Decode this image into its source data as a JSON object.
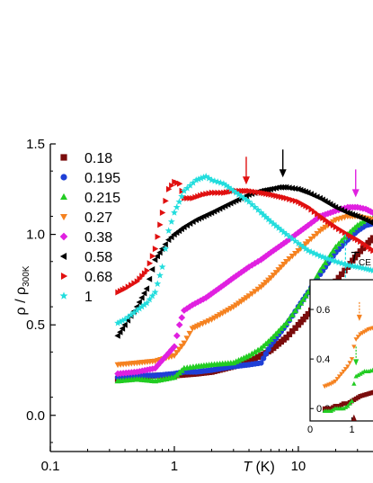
{
  "chart_data": {
    "type": "scatter",
    "xscale": "log",
    "xlim": [
      0.1,
      40
    ],
    "ylim": [
      -0.2,
      1.5
    ],
    "xticks": [
      {
        "v": 0.1,
        "label": "0.1"
      },
      {
        "v": 1,
        "label": "1"
      },
      {
        "v": 10,
        "label": "10"
      }
    ],
    "yticks": [
      {
        "v": 0.0,
        "label": "0.0"
      },
      {
        "v": 0.5,
        "label": "0.5"
      },
      {
        "v": 1.0,
        "label": "1.0"
      },
      {
        "v": 1.5,
        "label": "1.5"
      }
    ],
    "xlabel": {
      "main": "T",
      "unit": " (K)"
    },
    "ylabel": {
      "main": "ρ / ρ",
      "sub": "300K"
    },
    "annotation": {
      "main": "T",
      "sub": "CE",
      "x": 26,
      "y": 0.85
    },
    "legend_position": "top-left",
    "series": [
      {
        "name": "0.18",
        "color": "#7a0c0c",
        "marker": "square",
        "x": [
          0.35,
          0.5,
          0.7,
          1.0,
          1.5,
          2,
          3,
          4,
          5,
          6,
          8,
          10,
          12,
          15,
          20,
          25,
          30,
          35,
          40
        ],
        "y": [
          0.2,
          0.21,
          0.22,
          0.22,
          0.23,
          0.24,
          0.27,
          0.3,
          0.33,
          0.36,
          0.43,
          0.5,
          0.56,
          0.64,
          0.74,
          0.82,
          0.89,
          0.94,
          0.98
        ]
      },
      {
        "name": "0.195",
        "color": "#1f3fd6",
        "marker": "circle",
        "x": [
          0.35,
          0.5,
          0.7,
          1.0,
          1.2,
          1.5,
          2,
          3,
          4,
          5,
          6,
          8,
          10,
          12,
          15,
          20,
          25,
          30,
          35,
          40
        ],
        "y": [
          0.21,
          0.22,
          0.22,
          0.23,
          0.24,
          0.24,
          0.25,
          0.27,
          0.28,
          0.29,
          0.39,
          0.5,
          0.6,
          0.68,
          0.78,
          0.9,
          0.97,
          1.02,
          1.05,
          1.06
        ]
      },
      {
        "name": "0.215",
        "color": "#22cc22",
        "marker": "triangle-up",
        "x": [
          0.35,
          0.5,
          0.7,
          1.0,
          1.2,
          1.5,
          2,
          3,
          4,
          5,
          6,
          8,
          10,
          12,
          15,
          20,
          25,
          30,
          35,
          40
        ],
        "y": [
          0.19,
          0.2,
          0.19,
          0.21,
          0.26,
          0.27,
          0.28,
          0.29,
          0.33,
          0.37,
          0.42,
          0.51,
          0.6,
          0.68,
          0.8,
          0.93,
          1.0,
          1.05,
          1.08,
          1.09
        ]
      },
      {
        "name": "0.27",
        "color": "#f58220",
        "marker": "triangle-down",
        "x": [
          0.35,
          0.5,
          0.7,
          1.0,
          1.2,
          1.4,
          1.6,
          2,
          3,
          4,
          5,
          6,
          8,
          10,
          12,
          15,
          20,
          25,
          30,
          35,
          40
        ],
        "y": [
          0.28,
          0.29,
          0.3,
          0.33,
          0.4,
          0.48,
          0.5,
          0.53,
          0.6,
          0.66,
          0.71,
          0.76,
          0.85,
          0.91,
          0.96,
          1.02,
          1.08,
          1.1,
          1.1,
          1.09,
          1.08
        ]
      },
      {
        "name": "0.38",
        "color": "#e020e0",
        "marker": "diamond",
        "x": [
          0.35,
          0.5,
          0.7,
          1.0,
          1.1,
          1.2,
          1.4,
          1.8,
          2.5,
          3,
          4,
          5,
          6,
          8,
          10,
          12,
          15,
          20,
          25,
          30,
          35,
          40
        ],
        "y": [
          0.23,
          0.24,
          0.26,
          0.38,
          0.5,
          0.58,
          0.61,
          0.65,
          0.72,
          0.76,
          0.82,
          0.86,
          0.9,
          0.96,
          1.01,
          1.05,
          1.1,
          1.13,
          1.15,
          1.15,
          1.14,
          1.12
        ]
      },
      {
        "name": "0.58",
        "color": "#000000",
        "marker": "triangle-left",
        "x": [
          0.35,
          0.4,
          0.5,
          0.6,
          0.7,
          0.8,
          0.9,
          1.0,
          1.2,
          1.5,
          2,
          3,
          4,
          5,
          6,
          7,
          8,
          10,
          12,
          15,
          20,
          25,
          30,
          35,
          40
        ],
        "y": [
          0.44,
          0.5,
          0.6,
          0.7,
          0.86,
          0.92,
          0.97,
          1.0,
          1.04,
          1.08,
          1.12,
          1.18,
          1.22,
          1.24,
          1.25,
          1.26,
          1.26,
          1.25,
          1.23,
          1.2,
          1.15,
          1.12,
          1.1,
          1.08,
          1.06
        ]
      },
      {
        "name": "0.68",
        "color": "#e01010",
        "marker": "triangle-right",
        "x": [
          0.35,
          0.4,
          0.5,
          0.6,
          0.7,
          0.8,
          0.9,
          1.0,
          1.1,
          1.2,
          1.4,
          1.7,
          2,
          2.5,
          3,
          3.5,
          4,
          5,
          6,
          8,
          10,
          12,
          15,
          20,
          25,
          30,
          35,
          40
        ],
        "y": [
          0.68,
          0.7,
          0.74,
          0.8,
          0.92,
          1.12,
          1.25,
          1.29,
          1.28,
          1.2,
          1.2,
          1.22,
          1.23,
          1.23,
          1.24,
          1.24,
          1.24,
          1.23,
          1.22,
          1.2,
          1.18,
          1.15,
          1.1,
          1.04,
          1.0,
          0.97,
          0.94,
          0.91
        ]
      },
      {
        "name": "1",
        "color": "#22dddd",
        "marker": "star",
        "x": [
          0.35,
          0.4,
          0.5,
          0.6,
          0.7,
          0.8,
          0.9,
          1.0,
          1.2,
          1.5,
          1.8,
          2,
          2.5,
          3,
          4,
          5,
          6,
          8,
          10,
          12,
          15,
          20,
          25,
          30,
          35,
          40
        ],
        "y": [
          0.51,
          0.53,
          0.58,
          0.62,
          0.68,
          0.82,
          1.02,
          1.12,
          1.24,
          1.3,
          1.32,
          1.3,
          1.28,
          1.24,
          1.18,
          1.12,
          1.07,
          1.0,
          0.95,
          0.91,
          0.88,
          0.85,
          0.83,
          0.82,
          0.81,
          0.8
        ]
      }
    ],
    "arrows": [
      {
        "x": 3.8,
        "y": 1.26,
        "color": "#e01010"
      },
      {
        "x": 7.5,
        "y": 1.3,
        "color": "#000000"
      },
      {
        "x": 29,
        "y": 1.19,
        "color": "#e020e0"
      }
    ],
    "tce_line": {
      "x": 24,
      "y1": 0.5,
      "y2": 1.0,
      "color": "#22dddd"
    },
    "inset": {
      "xlim": [
        0,
        1.6
      ],
      "ylim": [
        0.15,
        0.72
      ],
      "xticks": [
        {
          "v": 0,
          "label": "0"
        },
        {
          "v": 1,
          "label": "1"
        }
      ],
      "yticks": [
        {
          "v": 0.2,
          "label": "0.2"
        },
        {
          "v": 0.4,
          "label": "0.4"
        },
        {
          "v": 0.6,
          "label": "0.6"
        }
      ],
      "series": [
        {
          "ref": "0.18",
          "color": "#7a0c0c",
          "marker": "square",
          "x": [
            0.35,
            0.5,
            0.6,
            0.7,
            0.8,
            0.9,
            1.0,
            1.1,
            1.2,
            1.4,
            1.6
          ],
          "y": [
            0.2,
            0.2,
            0.21,
            0.21,
            0.22,
            0.22,
            0.23,
            0.24,
            0.25,
            0.26,
            0.27
          ]
        },
        {
          "ref": "0.215",
          "color": "#22cc22",
          "marker": "triangle-up",
          "x": [
            0.35,
            0.5,
            0.6,
            0.7,
            0.8,
            0.9,
            1.0,
            1.05,
            1.1,
            1.2,
            1.3,
            1.4,
            1.6
          ],
          "y": [
            0.19,
            0.19,
            0.2,
            0.2,
            0.2,
            0.21,
            0.23,
            0.3,
            0.33,
            0.34,
            0.35,
            0.35,
            0.36
          ]
        },
        {
          "ref": "0.27",
          "color": "#f58220",
          "marker": "triangle-down",
          "x": [
            0.35,
            0.5,
            0.6,
            0.7,
            0.8,
            0.9,
            1.0,
            1.05,
            1.1,
            1.2,
            1.3,
            1.4,
            1.6
          ],
          "y": [
            0.29,
            0.3,
            0.31,
            0.33,
            0.35,
            0.37,
            0.4,
            0.45,
            0.48,
            0.5,
            0.51,
            0.52,
            0.53
          ]
        }
      ],
      "arrows": [
        {
          "x": 1.18,
          "y": 0.55,
          "color": "#f58220",
          "kind": "down-to"
        },
        {
          "x": 1.1,
          "y": 0.37,
          "color": "#22cc22",
          "kind": "down-to"
        },
        {
          "x": 1.05,
          "y": 0.18,
          "color": "#7a0c0c",
          "kind": "up-from"
        }
      ]
    }
  }
}
